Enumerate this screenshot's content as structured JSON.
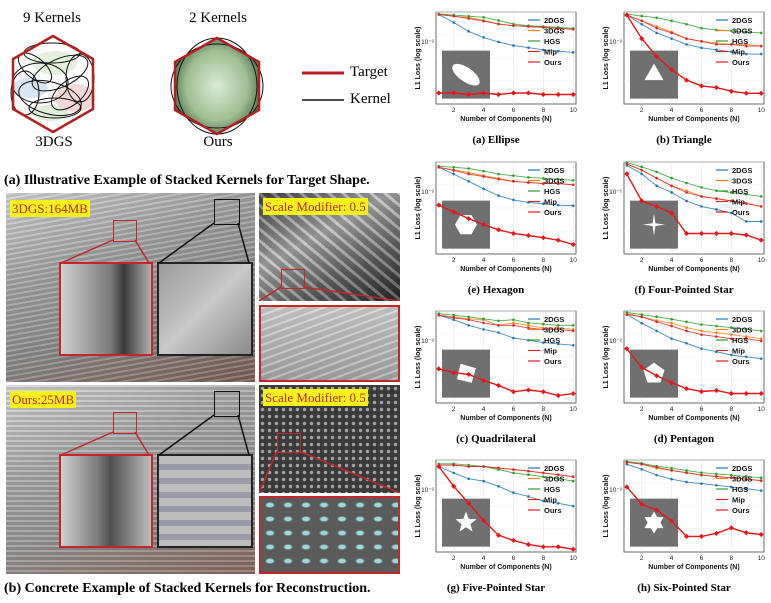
{
  "panel_a": {
    "label_3dgs_kernels": "9 Kernels",
    "label_ours_kernels": "2 Kernels",
    "label_3dgs": "3DGS",
    "label_ours": "Ours",
    "legend_target": "Target",
    "legend_kernel": "Kernel",
    "caption": "(a) Illustrative Example of Stacked Kernels for Target Shape.",
    "colors": {
      "target": "#c0282a",
      "kernel": "#111111"
    }
  },
  "panel_b": {
    "tag_3dgs": "3DGS:164MB",
    "tag_ours": "Ours:25MB",
    "tag_scale_1": "Scale Modifier: 0.5",
    "tag_scale_2": "Scale Modifier: 0.5",
    "caption": "(b) Concrete Example of Stacked Kernels for Reconstruction."
  },
  "chart_data": [
    {
      "type": "line",
      "caption": "(a) Ellipse",
      "xlabel": "Number of Components (N)",
      "ylabel": "L1 Loss (log scale)",
      "y_tick": "10⁻²",
      "x": [
        1,
        2,
        3,
        4,
        5,
        6,
        7,
        8,
        9,
        10
      ],
      "ylim_log": [
        -3.0,
        -1.3
      ],
      "shape": "ellipse",
      "series": [
        {
          "name": "2DGS",
          "color": "#1f77b4",
          "values": [
            0.045,
            0.032,
            0.022,
            0.017,
            0.014,
            0.012,
            0.011,
            0.01,
            0.0095,
            0.009
          ]
        },
        {
          "name": "3DGS",
          "color": "#ff7f0e",
          "values": [
            0.045,
            0.042,
            0.04,
            0.035,
            0.03,
            0.028,
            0.027,
            0.026,
            0.025,
            0.024
          ]
        },
        {
          "name": "HGS",
          "color": "#2ca02c",
          "values": [
            0.046,
            0.044,
            0.042,
            0.04,
            0.035,
            0.03,
            0.028,
            0.027,
            0.026,
            0.025
          ]
        },
        {
          "name": "Mip",
          "color": "#d62728",
          "values": [
            0.045,
            0.042,
            0.038,
            0.034,
            0.03,
            0.028,
            0.027,
            0.026,
            0.025,
            0.024
          ]
        },
        {
          "name": "Ours",
          "color": "#e8161b",
          "values": [
            0.0016,
            0.0016,
            0.0015,
            0.0016,
            0.0015,
            0.0016,
            0.0016,
            0.0015,
            0.0015,
            0.0015
          ]
        }
      ]
    },
    {
      "type": "line",
      "caption": "(b) Triangle",
      "xlabel": "Number of Components (N)",
      "ylabel": "L1 Loss (log scale)",
      "y_tick": "10⁻²",
      "x": [
        1,
        2,
        3,
        4,
        5,
        6,
        7,
        8,
        9,
        10
      ],
      "ylim_log": [
        -2.8,
        -1.25
      ],
      "shape": "triangle",
      "series": [
        {
          "name": "2DGS",
          "color": "#1f77b4",
          "values": [
            0.05,
            0.035,
            0.025,
            0.02,
            0.016,
            0.014,
            0.013,
            0.012,
            0.011,
            0.011
          ]
        },
        {
          "name": "3DGS",
          "color": "#ff7f0e",
          "values": [
            0.05,
            0.04,
            0.032,
            0.026,
            0.02,
            0.018,
            0.017,
            0.016,
            0.016,
            0.015
          ]
        },
        {
          "name": "HGS",
          "color": "#2ca02c",
          "values": [
            0.052,
            0.048,
            0.045,
            0.04,
            0.035,
            0.03,
            0.028,
            0.027,
            0.026,
            0.025
          ]
        },
        {
          "name": "Mip",
          "color": "#d62728",
          "values": [
            0.05,
            0.04,
            0.03,
            0.025,
            0.02,
            0.018,
            0.016,
            0.016,
            0.015,
            0.015
          ]
        },
        {
          "name": "Ours",
          "color": "#e8161b",
          "values": [
            0.05,
            0.02,
            0.01,
            0.006,
            0.004,
            0.0032,
            0.003,
            0.0026,
            0.0024,
            0.0024
          ]
        }
      ]
    },
    {
      "type": "line",
      "caption": "(e) Hexagon",
      "xlabel": "Number of Components (N)",
      "ylabel": "L1 Loss (log scale)",
      "y_tick": "10⁻²",
      "x": [
        1,
        2,
        3,
        4,
        5,
        6,
        7,
        8,
        9,
        10
      ],
      "ylim_log": [
        -3.0,
        -1.3
      ],
      "shape": "hexagon",
      "series": [
        {
          "name": "2DGS",
          "color": "#1f77b4",
          "values": [
            0.04,
            0.03,
            0.022,
            0.016,
            0.012,
            0.01,
            0.009,
            0.0085,
            0.008,
            0.0078
          ]
        },
        {
          "name": "3DGS",
          "color": "#ff7f0e",
          "values": [
            0.04,
            0.036,
            0.032,
            0.028,
            0.025,
            0.022,
            0.021,
            0.02,
            0.02,
            0.019
          ]
        },
        {
          "name": "HGS",
          "color": "#2ca02c",
          "values": [
            0.042,
            0.04,
            0.038,
            0.034,
            0.03,
            0.028,
            0.026,
            0.025,
            0.024,
            0.023
          ]
        },
        {
          "name": "Mip",
          "color": "#d62728",
          "values": [
            0.04,
            0.035,
            0.03,
            0.027,
            0.024,
            0.022,
            0.021,
            0.02,
            0.02,
            0.019
          ]
        },
        {
          "name": "Ours",
          "color": "#e8161b",
          "values": [
            0.008,
            0.006,
            0.0045,
            0.0035,
            0.0028,
            0.0024,
            0.0022,
            0.002,
            0.0018,
            0.0015
          ]
        }
      ]
    },
    {
      "type": "line",
      "caption": "(f) Four-Pointed Star",
      "xlabel": "Number of Components (N)",
      "ylabel": "L1 Loss (log scale)",
      "y_tick": "10⁻¹",
      "x": [
        1,
        2,
        3,
        4,
        5,
        6,
        7,
        8,
        9,
        10
      ],
      "ylim_log": [
        -2.0,
        -0.65
      ],
      "shape": "four-star",
      "series": [
        {
          "name": "2DGS",
          "color": "#1f77b4",
          "values": [
            0.2,
            0.15,
            0.1,
            0.08,
            0.06,
            0.05,
            0.045,
            0.04,
            0.03,
            0.03
          ]
        },
        {
          "name": "3DGS",
          "color": "#ff7f0e",
          "values": [
            0.21,
            0.17,
            0.13,
            0.1,
            0.085,
            0.07,
            0.065,
            0.06,
            0.055,
            0.05
          ]
        },
        {
          "name": "HGS",
          "color": "#2ca02c",
          "values": [
            0.22,
            0.19,
            0.16,
            0.13,
            0.11,
            0.095,
            0.085,
            0.08,
            0.075,
            0.07
          ]
        },
        {
          "name": "Mip",
          "color": "#d62728",
          "values": [
            0.21,
            0.17,
            0.13,
            0.1,
            0.08,
            0.07,
            0.065,
            0.06,
            0.055,
            0.05
          ]
        },
        {
          "name": "Ours",
          "color": "#e8161b",
          "values": [
            0.15,
            0.06,
            0.05,
            0.04,
            0.02,
            0.02,
            0.02,
            0.02,
            0.019,
            0.016
          ]
        }
      ]
    },
    {
      "type": "line",
      "caption": "(c) Quadrilateral",
      "xlabel": "Number of Components (N)",
      "ylabel": "L1 Loss (log scale)",
      "y_tick": "10⁻²",
      "x": [
        1,
        2,
        3,
        4,
        5,
        6,
        7,
        8,
        9,
        10
      ],
      "ylim_log": [
        -3.05,
        -1.45
      ],
      "shape": "quadrilateral",
      "series": [
        {
          "name": "2DGS",
          "color": "#1f77b4",
          "values": [
            0.03,
            0.025,
            0.02,
            0.017,
            0.015,
            0.012,
            0.011,
            0.01,
            0.0095,
            0.009
          ]
        },
        {
          "name": "3DGS",
          "color": "#ff7f0e",
          "values": [
            0.03,
            0.028,
            0.026,
            0.025,
            0.02,
            0.022,
            0.02,
            0.018,
            0.018,
            0.017
          ]
        },
        {
          "name": "HGS",
          "color": "#2ca02c",
          "values": [
            0.032,
            0.03,
            0.028,
            0.026,
            0.024,
            0.025,
            0.022,
            0.021,
            0.02,
            0.02
          ]
        },
        {
          "name": "Mip",
          "color": "#d62728",
          "values": [
            0.03,
            0.027,
            0.025,
            0.022,
            0.02,
            0.02,
            0.018,
            0.017,
            0.017,
            0.016
          ]
        },
        {
          "name": "Ours",
          "color": "#e8161b",
          "values": [
            0.0035,
            0.003,
            0.0028,
            0.0022,
            0.0018,
            0.0014,
            0.0015,
            0.0014,
            0.0012,
            0.0013
          ]
        }
      ]
    },
    {
      "type": "line",
      "caption": "(d) Pentagon",
      "xlabel": "Number of Components (N)",
      "ylabel": "L1 Loss (log scale)",
      "y_tick": "10⁻²",
      "x": [
        1,
        2,
        3,
        4,
        5,
        6,
        7,
        8,
        9,
        10
      ],
      "ylim_log": [
        -2.6,
        -1.45
      ],
      "shape": "pentagon",
      "series": [
        {
          "name": "2DGS",
          "color": "#1f77b4",
          "values": [
            0.032,
            0.025,
            0.02,
            0.016,
            0.014,
            0.012,
            0.011,
            0.01,
            0.0095,
            0.009
          ]
        },
        {
          "name": "3DGS",
          "color": "#ff7f0e",
          "values": [
            0.033,
            0.03,
            0.027,
            0.025,
            0.022,
            0.02,
            0.019,
            0.018,
            0.017,
            0.016
          ]
        },
        {
          "name": "HGS",
          "color": "#2ca02c",
          "values": [
            0.034,
            0.032,
            0.03,
            0.028,
            0.026,
            0.024,
            0.023,
            0.022,
            0.021,
            0.02
          ]
        },
        {
          "name": "Mip",
          "color": "#d62728",
          "values": [
            0.032,
            0.03,
            0.026,
            0.023,
            0.02,
            0.018,
            0.017,
            0.016,
            0.016,
            0.015
          ]
        },
        {
          "name": "Ours",
          "color": "#e8161b",
          "values": [
            0.012,
            0.007,
            0.0055,
            0.0045,
            0.0038,
            0.0035,
            0.0036,
            0.0033,
            0.0033,
            0.0033
          ]
        }
      ]
    },
    {
      "type": "line",
      "caption": "(g) Five-Pointed Star",
      "xlabel": "Number of Components (N)",
      "ylabel": "L1 Loss (log scale)",
      "y_tick": "10⁻²",
      "x": [
        1,
        2,
        3,
        4,
        5,
        6,
        7,
        8,
        9,
        10
      ],
      "ylim_log": [
        -3.0,
        -1.6
      ],
      "shape": "five-star",
      "series": [
        {
          "name": "2DGS",
          "color": "#1f77b4",
          "values": [
            0.02,
            0.016,
            0.013,
            0.012,
            0.01,
            0.008,
            0.007,
            0.006,
            0.0055,
            0.005
          ]
        },
        {
          "name": "3DGS",
          "color": "#ff7f0e",
          "values": [
            0.021,
            0.021,
            0.02,
            0.02,
            0.019,
            0.018,
            0.017,
            0.016,
            0.015,
            0.014
          ]
        },
        {
          "name": "HGS",
          "color": "#2ca02c",
          "values": [
            0.022,
            0.022,
            0.021,
            0.02,
            0.018,
            0.016,
            0.015,
            0.014,
            0.013,
            0.012
          ]
        },
        {
          "name": "Mip",
          "color": "#d62728",
          "values": [
            0.021,
            0.021,
            0.02,
            0.02,
            0.019,
            0.018,
            0.017,
            0.016,
            0.015,
            0.014
          ]
        },
        {
          "name": "Ours",
          "color": "#e8161b",
          "values": [
            0.02,
            0.01,
            0.0055,
            0.003,
            0.0018,
            0.0015,
            0.0013,
            0.0012,
            0.0012,
            0.0011
          ]
        }
      ]
    },
    {
      "type": "line",
      "caption": "(h) Six-Pointed Star",
      "xlabel": "Number of Components (N)",
      "ylabel": "L1 Loss (log scale)",
      "y_tick": "10⁻²",
      "x": [
        1,
        2,
        3,
        4,
        5,
        6,
        7,
        8,
        9,
        10
      ],
      "ylim_log": [
        -2.4,
        -1.35
      ],
      "shape": "six-star",
      "series": [
        {
          "name": "2DGS",
          "color": "#1f77b4",
          "values": [
            0.04,
            0.035,
            0.03,
            0.027,
            0.025,
            0.024,
            0.023,
            0.022,
            0.021,
            0.02
          ]
        },
        {
          "name": "3DGS",
          "color": "#ff7f0e",
          "values": [
            0.042,
            0.04,
            0.036,
            0.034,
            0.032,
            0.03,
            0.029,
            0.028,
            0.027,
            0.026
          ]
        },
        {
          "name": "HGS",
          "color": "#2ca02c",
          "values": [
            0.043,
            0.041,
            0.038,
            0.036,
            0.034,
            0.032,
            0.031,
            0.03,
            0.029,
            0.028
          ]
        },
        {
          "name": "Mip",
          "color": "#d62728",
          "values": [
            0.042,
            0.04,
            0.037,
            0.034,
            0.032,
            0.03,
            0.029,
            0.028,
            0.027,
            0.026
          ]
        },
        {
          "name": "Ours",
          "color": "#e8161b",
          "values": [
            0.022,
            0.014,
            0.012,
            0.009,
            0.006,
            0.006,
            0.0065,
            0.0075,
            0.0066,
            0.0063
          ]
        }
      ]
    }
  ]
}
